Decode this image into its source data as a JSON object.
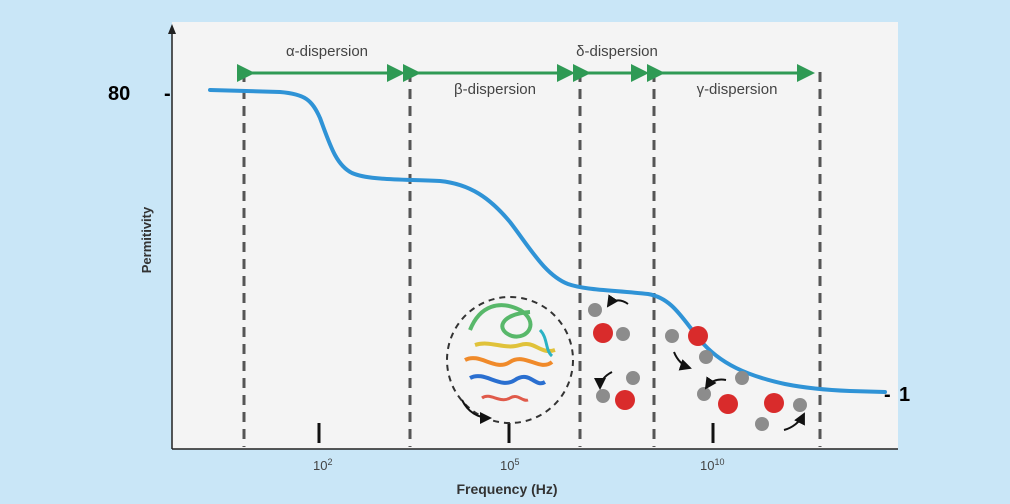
{
  "colors": {
    "background": "#c9e6f7",
    "plot_area": "#f4f4f4",
    "curve": "#2f93d6",
    "arrow": "#2f9a55",
    "dashed": "#555555",
    "oxygen": "#d92b2b",
    "hydrogen": "#8c8c8c"
  },
  "labels": {
    "y_axis": "Permitivity",
    "x_axis": "Frequency (Hz)",
    "y_high": "80",
    "y_low": "1",
    "y_high_tick": "-",
    "y_low_tick": "-"
  },
  "dispersions": [
    {
      "label": "α-dispersion"
    },
    {
      "label": "β-dispersion"
    },
    {
      "label": "δ-dispersion"
    },
    {
      "label": "γ-dispersion"
    }
  ],
  "x_ticks": [
    {
      "base": "10",
      "exp": "2"
    },
    {
      "base": "10",
      "exp": "5"
    },
    {
      "base": "10",
      "exp": "10"
    }
  ],
  "illustration": {
    "protein": "protein-ribbon",
    "molecules": [
      "water-molecule"
    ]
  }
}
